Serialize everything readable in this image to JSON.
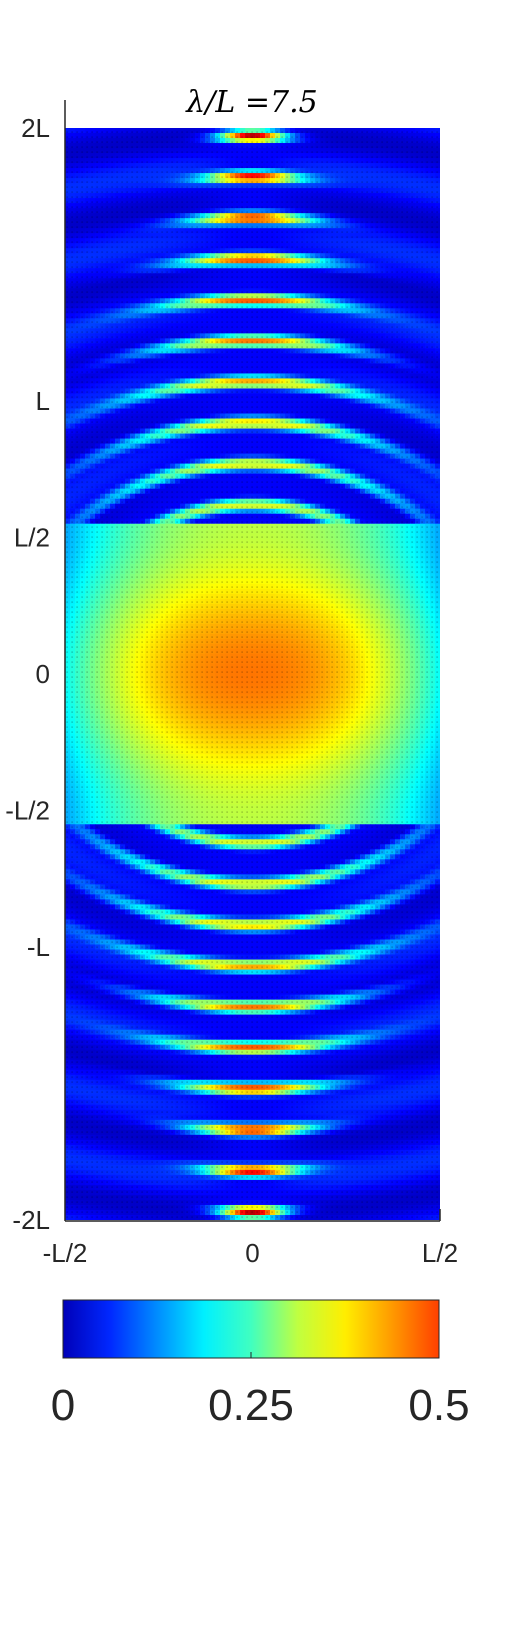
{
  "chart_data": {
    "type": "heatmap",
    "title": "λ/L =7.5",
    "xlabel": "",
    "ylabel": "",
    "x_ticks": [
      {
        "value": -0.5,
        "label": "-L/2"
      },
      {
        "value": 0,
        "label": "0"
      },
      {
        "value": 0.5,
        "label": "L/2"
      }
    ],
    "y_ticks": [
      {
        "value": 2,
        "label": "2L"
      },
      {
        "value": 1,
        "label": "L"
      },
      {
        "value": 0.5,
        "label": "L/2"
      },
      {
        "value": 0,
        "label": "0"
      },
      {
        "value": -0.5,
        "label": "-L/2"
      },
      {
        "value": -1,
        "label": "-L"
      },
      {
        "value": -2,
        "label": "-2L"
      }
    ],
    "xlim": [
      -0.5,
      0.5
    ],
    "ylim": [
      -2,
      2
    ],
    "colormap": "jet",
    "colorbar": {
      "range": [
        0,
        0.5
      ],
      "ticks": [
        {
          "value": 0,
          "label": "0"
        },
        {
          "value": 0.25,
          "label": "0.25"
        },
        {
          "value": 0.5,
          "label": "0.5"
        }
      ],
      "placement": "bottom"
    },
    "grid": false,
    "overlay": "dense black velocity-vector quiver field"
  }
}
